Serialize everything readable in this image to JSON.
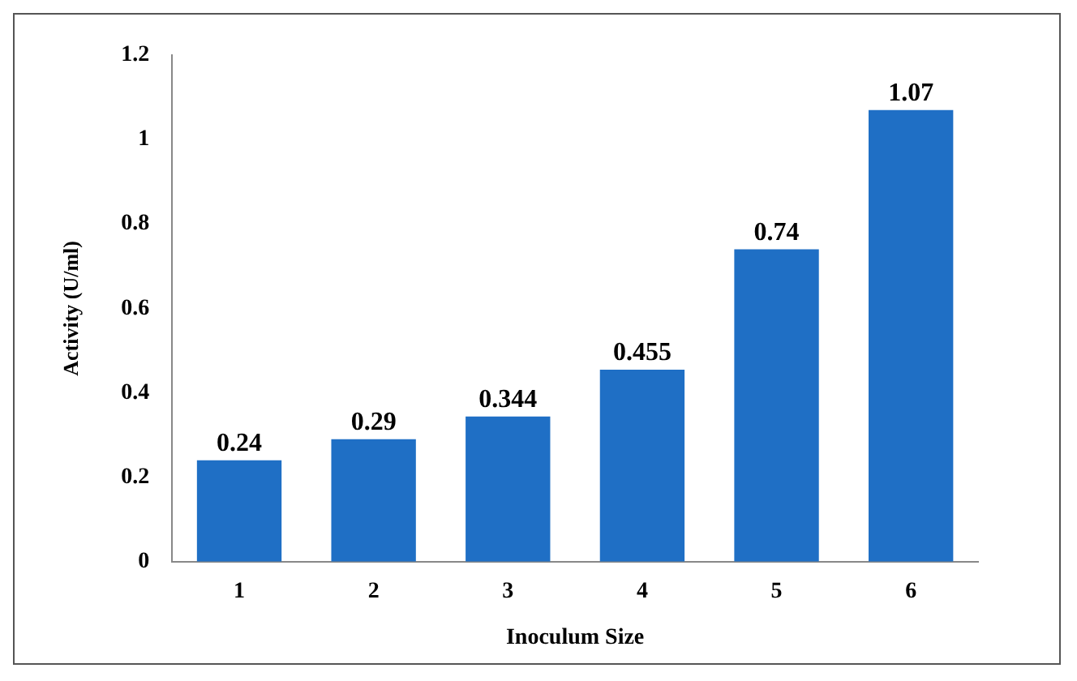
{
  "chart_data": {
    "type": "bar",
    "xlabel": "Inoculum Size",
    "ylabel": "Activity (U/ml)",
    "categories": [
      "1",
      "2",
      "3",
      "4",
      "5",
      "6"
    ],
    "values": [
      0.24,
      0.29,
      0.344,
      0.455,
      0.74,
      1.07
    ],
    "color": "#1f6fc5",
    "ylim": [
      0,
      1.2
    ],
    "yticks": [
      0,
      0.2,
      0.4,
      0.6,
      0.8,
      1,
      1.2
    ],
    "grid": false,
    "legend": false,
    "data_labels": true
  }
}
